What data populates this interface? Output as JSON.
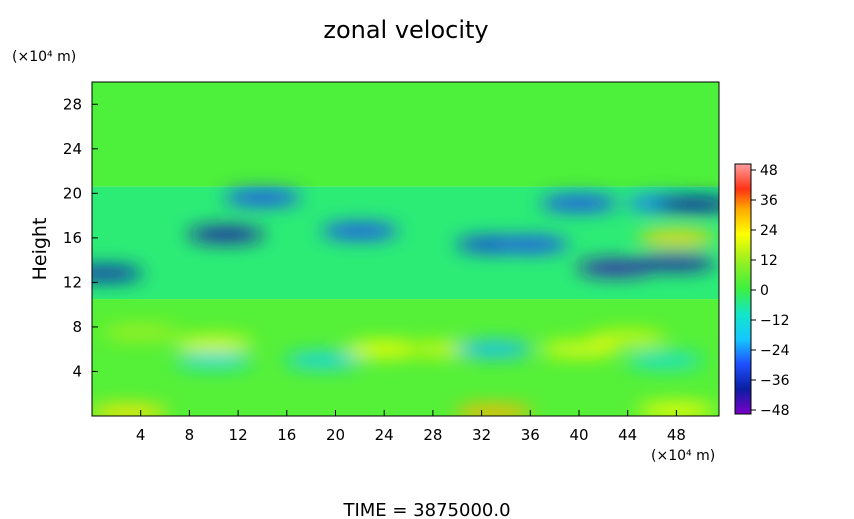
{
  "chart_data": {
    "type": "heatmap",
    "title": "zonal velocity",
    "ylabel": "Height",
    "y_unit_label": "(×10⁴ m)",
    "x_unit_label": "(×10⁴ m)",
    "x_ticks": [
      "4",
      "8",
      "12",
      "16",
      "20",
      "24",
      "28",
      "32",
      "36",
      "40",
      "44",
      "48"
    ],
    "y_ticks": [
      "4",
      "8",
      "12",
      "16",
      "20",
      "24",
      "28"
    ],
    "xlim": [
      0,
      51.5
    ],
    "ylim": [
      0,
      30
    ],
    "colorbar": {
      "ticks": [
        "48",
        "36",
        "24",
        "12",
        "0",
        "−12",
        "−24",
        "−36",
        "−48"
      ],
      "range": [
        -48,
        48
      ]
    },
    "footer": "TIME = 3875000.0",
    "bands": [
      {
        "y": [
          20.6,
          30
        ],
        "value": 2
      },
      {
        "y": [
          10.5,
          20.6
        ],
        "value": -4
      },
      {
        "y": [
          0,
          10.5
        ],
        "value": 3
      }
    ],
    "features": [
      {
        "x": 11,
        "y": 16.3,
        "value": -40
      },
      {
        "x": 22,
        "y": 16.6,
        "value": -30
      },
      {
        "x": 33,
        "y": 15.4,
        "value": -32
      },
      {
        "x": 36,
        "y": 15.4,
        "value": -30
      },
      {
        "x": 40,
        "y": 19.1,
        "value": -30
      },
      {
        "x": 47,
        "y": 19.1,
        "value": -26
      },
      {
        "x": 49.5,
        "y": 19,
        "value": -38
      },
      {
        "x": 43,
        "y": 13.3,
        "value": -42
      },
      {
        "x": 48,
        "y": 13.8,
        "value": -40
      },
      {
        "x": 1,
        "y": 12.8,
        "value": -36
      },
      {
        "x": 14,
        "y": 19.6,
        "value": -30
      },
      {
        "x": 48,
        "y": 16,
        "value": 26
      },
      {
        "x": 4,
        "y": 7.5,
        "value": 12
      },
      {
        "x": 10,
        "y": 6.5,
        "value": 18
      },
      {
        "x": 24,
        "y": 6,
        "value": 20
      },
      {
        "x": 29,
        "y": 6,
        "value": 16
      },
      {
        "x": 40,
        "y": 6,
        "value": 18
      },
      {
        "x": 44,
        "y": 7,
        "value": 16
      },
      {
        "x": 3,
        "y": 0.3,
        "value": 24
      },
      {
        "x": 33,
        "y": 0.3,
        "value": 30
      },
      {
        "x": 48,
        "y": 0.5,
        "value": 20
      },
      {
        "x": 10,
        "y": 5,
        "value": -14
      },
      {
        "x": 19,
        "y": 5,
        "value": -16
      },
      {
        "x": 33,
        "y": 6,
        "value": -20
      },
      {
        "x": 47,
        "y": 5,
        "value": -12
      }
    ]
  }
}
